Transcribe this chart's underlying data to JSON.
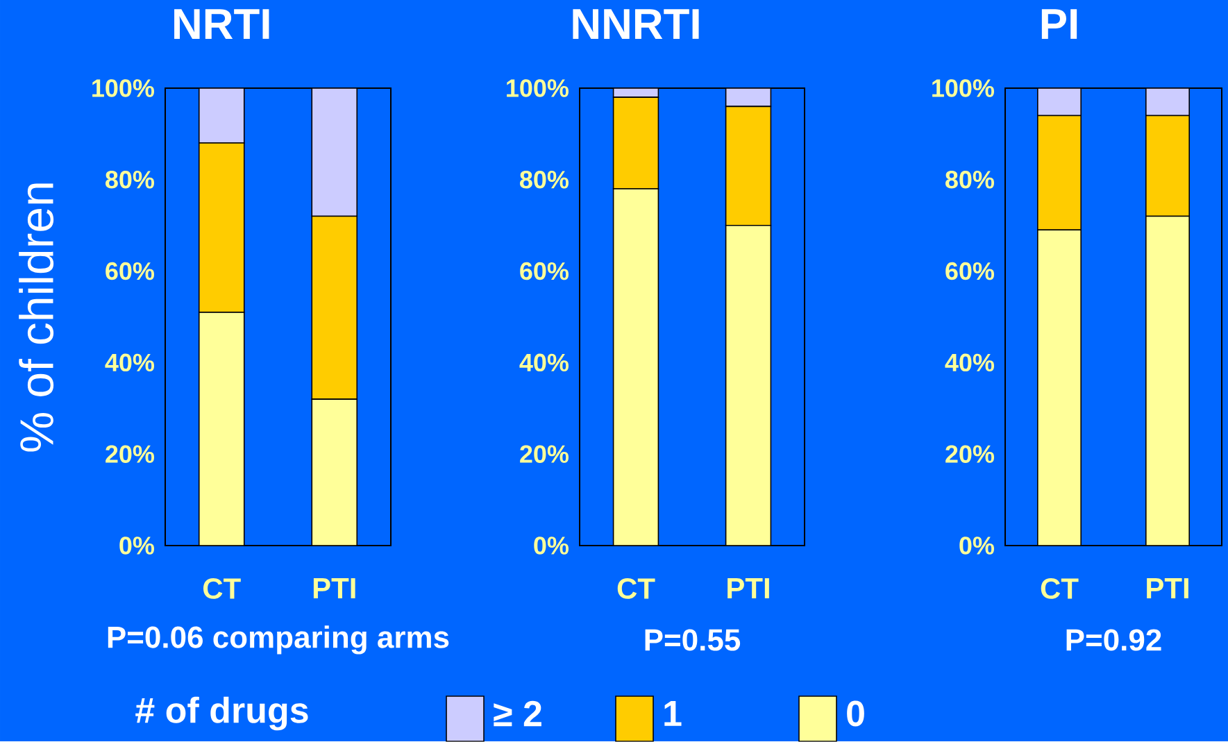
{
  "chart_data": [
    {
      "type": "bar",
      "stacked": true,
      "title": "NRTI",
      "ylabel": "% of children",
      "legend": "bottom",
      "legend_title": "# of drugs",
      "categories": [
        "CT",
        "PTI"
      ],
      "series": [
        {
          "name": "0",
          "color": "#ffff99",
          "values": [
            51,
            32
          ]
        },
        {
          "name": "1",
          "color": "#ffcc00",
          "values": [
            37,
            40
          ]
        },
        {
          "name": "≥ 2",
          "color": "#ccccff",
          "values": [
            12,
            28
          ]
        }
      ],
      "ylim": [
        0,
        100
      ],
      "yticks": [
        {
          "value": 0,
          "label": "0%"
        },
        {
          "value": 20,
          "label": "20%"
        },
        {
          "value": 40,
          "label": "40%"
        },
        {
          "value": 60,
          "label": "60%"
        },
        {
          "value": 80,
          "label": "80%"
        },
        {
          "value": 100,
          "label": "100%"
        }
      ],
      "annotations": [
        "P=0.06 comparing arms"
      ]
    },
    {
      "type": "bar",
      "stacked": true,
      "title": "NNRTI",
      "categories": [
        "CT",
        "PTI"
      ],
      "series": [
        {
          "color": "#ffff99",
          "values": [
            78,
            70
          ]
        },
        {
          "color": "#ffcc00",
          "values": [
            20,
            26
          ]
        },
        {
          "color": "#ccccff",
          "values": [
            2,
            4
          ]
        }
      ],
      "ylim": [
        0,
        100
      ],
      "yticks": [
        {
          "value": 0,
          "label": "0%"
        },
        {
          "value": 20,
          "label": "20%"
        },
        {
          "value": 40,
          "label": "40%"
        },
        {
          "value": 60,
          "label": "60%"
        },
        {
          "value": 80,
          "label": "80%"
        },
        {
          "value": 100,
          "label": "100%"
        }
      ],
      "annotations": [
        "P=0.55"
      ]
    },
    {
      "type": "bar",
      "stacked": true,
      "title": "PI",
      "categories": [
        "CT",
        "PTI"
      ],
      "series": [
        {
          "color": "#ffff99",
          "values": [
            69,
            72
          ]
        },
        {
          "color": "#ffcc00",
          "values": [
            25,
            22
          ]
        },
        {
          "color": "#ccccff",
          "values": [
            6,
            6
          ]
        }
      ],
      "ylim": [
        0,
        100
      ],
      "yticks": [
        {
          "value": 0,
          "label": "0%"
        },
        {
          "value": 20,
          "label": "20%"
        },
        {
          "value": 40,
          "label": "40%"
        },
        {
          "value": 60,
          "label": "60%"
        },
        {
          "value": 80,
          "label": "80%"
        },
        {
          "value": 100,
          "label": "100%"
        }
      ],
      "annotations": [
        "P=0.92"
      ]
    }
  ]
}
